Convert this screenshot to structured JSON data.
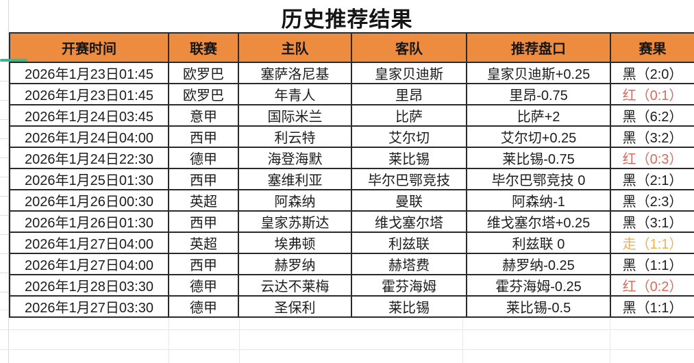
{
  "title": "历史推荐结果",
  "table": {
    "columns": [
      {
        "key": "time",
        "label": "开赛时间"
      },
      {
        "key": "league",
        "label": "联赛"
      },
      {
        "key": "home",
        "label": "主队"
      },
      {
        "key": "away",
        "label": "客队"
      },
      {
        "key": "handicap",
        "label": "推荐盘口"
      },
      {
        "key": "result",
        "label": "赛果"
      }
    ],
    "rows": [
      {
        "time": "2026年1月23日01:45",
        "league": "欧罗巴",
        "home": "塞萨洛尼基",
        "away": "皇家贝迪斯",
        "handicap": "皇家贝迪斯+0.25",
        "result": "黑（2:0）",
        "result_type": "black"
      },
      {
        "time": "2026年1月23日01:45",
        "league": "欧罗巴",
        "home": "年青人",
        "away": "里昂",
        "handicap": "里昂-0.75",
        "result": "红（0:1）",
        "result_type": "red"
      },
      {
        "time": "2026年1月24日03:45",
        "league": "意甲",
        "home": "国际米兰",
        "away": "比萨",
        "handicap": "比萨+2",
        "result": "黑（6:2）",
        "result_type": "black"
      },
      {
        "time": "2026年1月24日04:00",
        "league": "西甲",
        "home": "利云特",
        "away": "艾尔切",
        "handicap": "艾尔切+0.25",
        "result": "黑（3:2）",
        "result_type": "black"
      },
      {
        "time": "2026年1月24日22:30",
        "league": "德甲",
        "home": "海登海默",
        "away": "莱比锡",
        "handicap": "莱比锡-0.75",
        "result": "红（0:3）",
        "result_type": "red"
      },
      {
        "time": "2026年1月25日01:30",
        "league": "西甲",
        "home": "塞维利亚",
        "away": "毕尔巴鄂竞技",
        "handicap": "毕尔巴鄂竞技 0",
        "result": "黑（2:1）",
        "result_type": "black"
      },
      {
        "time": "2026年1月26日00:30",
        "league": "英超",
        "home": "阿森纳",
        "away": "曼联",
        "handicap": "阿森纳-1",
        "result": "黑（2:3）",
        "result_type": "black"
      },
      {
        "time": "2026年1月26日01:30",
        "league": "西甲",
        "home": "皇家苏斯达",
        "away": "维戈塞尔塔",
        "handicap": "维戈塞尔塔+0.25",
        "result": "黑（3:1）",
        "result_type": "black"
      },
      {
        "time": "2026年1月27日04:00",
        "league": "英超",
        "home": "埃弗顿",
        "away": "利兹联",
        "handicap": "利兹联 0",
        "result": "走（1:1）",
        "result_type": "push"
      },
      {
        "time": "2026年1月27日04:00",
        "league": "西甲",
        "home": "赫罗纳",
        "away": "赫塔费",
        "handicap": "赫罗纳-0.25",
        "result": "黑（1:1）",
        "result_type": "black"
      },
      {
        "time": "2026年1月28日03:30",
        "league": "德甲",
        "home": "云达不莱梅",
        "away": "霍芬海姆",
        "handicap": "霍芬海姆-0.25",
        "result": "红（0:2）",
        "result_type": "red"
      },
      {
        "time": "2026年1月27日03:30",
        "league": "德甲",
        "home": "圣保利",
        "away": "莱比锡",
        "handicap": "莱比锡-0.5",
        "result": "黑（1:1）",
        "result_type": "black"
      }
    ]
  },
  "colors": {
    "header_bg": "#ed8b3e",
    "border_dark": "#2a2a2a",
    "grid_faint": "#e7e7e7",
    "accent_green": "#3eb48c",
    "result_black": "#1c1c1c",
    "result_red": "#df695c",
    "result_push": "#f0b052"
  }
}
